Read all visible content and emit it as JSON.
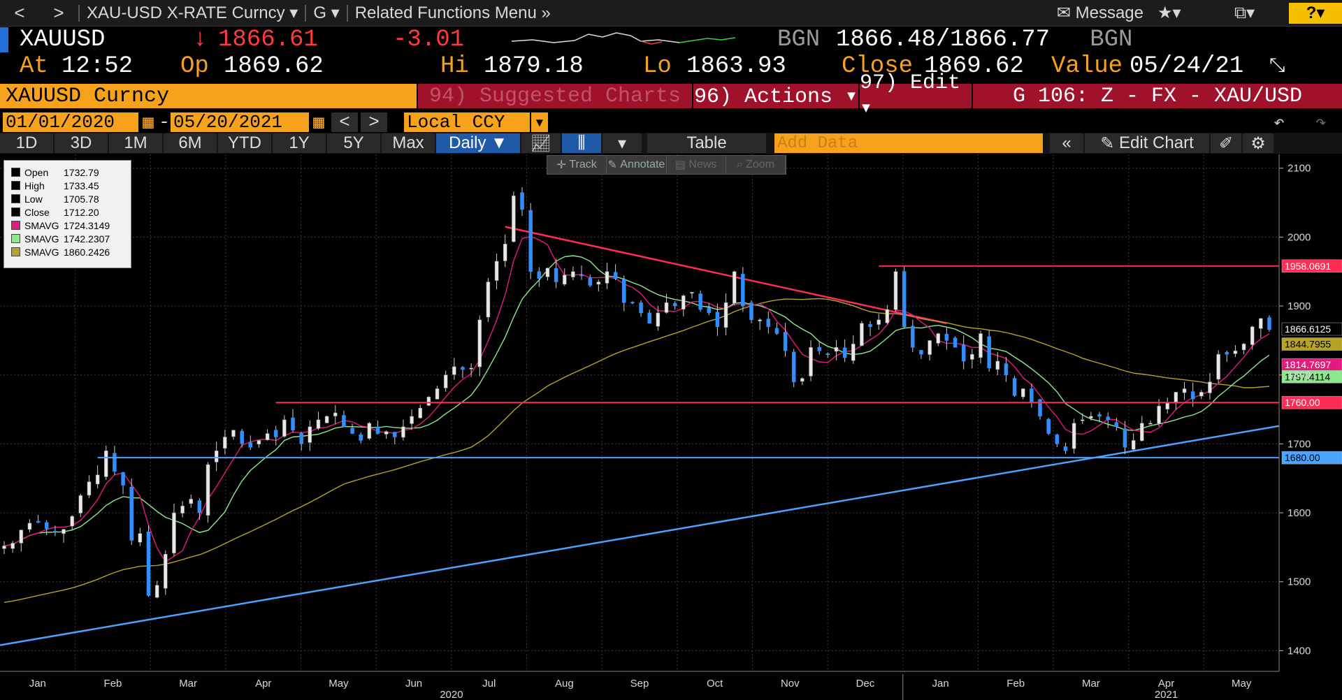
{
  "nav": {
    "back": "<",
    "forward": ">",
    "security_menu": "XAU-USD X-RATE Curncy",
    "function_menu": "G",
    "related": "Related Functions Menu",
    "message": "Message",
    "help": "?"
  },
  "ticker": {
    "symbol": "XAUUSD",
    "last_arrow": "↓",
    "last": "1866.61",
    "change": "-3.01",
    "source1": "BGN",
    "bid": "1866.48",
    "slash": "/",
    "ask": "1866.77",
    "source2": "BGN",
    "at_label": "At",
    "at": "12:52",
    "op_label": "Op",
    "op": "1869.62",
    "hi_label": "Hi",
    "hi": "1879.18",
    "lo_label": "Lo",
    "lo": "1863.93",
    "close_label": "Close",
    "close": "1869.62",
    "value_label": "Value",
    "value_date": "05/24/21"
  },
  "function_bar": {
    "title": "XAUUSD Curncy",
    "suggested": "94) Suggested Charts",
    "actions": "96) Actions ▾",
    "edit": "97) Edit ▾",
    "chart_name": "G 106: Z - FX - XAU/USD"
  },
  "date_bar": {
    "start": "01/01/2020",
    "dash": "-",
    "end": "05/20/2021",
    "prev": "<",
    "next": ">",
    "currency": "Local CCY"
  },
  "period_bar": {
    "periods": [
      "1D",
      "3D",
      "1M",
      "6M",
      "YTD",
      "1Y",
      "5Y",
      "Max"
    ],
    "frequency": "Daily ▼",
    "table": "Table",
    "add_data_placeholder": "Add Data",
    "collapse": "«",
    "edit_chart": "Edit Chart"
  },
  "toolbar": {
    "track": "Track",
    "annotate": "Annotate",
    "news": "News",
    "zoom": "Zoom"
  },
  "legend": [
    {
      "name": "Open",
      "value": "1732.79",
      "color": "#000000"
    },
    {
      "name": "High",
      "value": "1733.45",
      "color": "#000000"
    },
    {
      "name": "Low",
      "value": "1705.78",
      "color": "#000000"
    },
    {
      "name": "Close",
      "value": "1712.20",
      "color": "#000000"
    },
    {
      "name": "SMAVG",
      "value": "1724.3149",
      "color": "#e6197f"
    },
    {
      "name": "SMAVG",
      "value": "1742.2307",
      "color": "#8de88d"
    },
    {
      "name": "SMAVG",
      "value": "1860.2426",
      "color": "#b5a227"
    }
  ],
  "chart_data": {
    "type": "candlestick",
    "ylim": [
      1370,
      2120
    ],
    "y_ticks": [
      1400,
      1500,
      1600,
      1700,
      1800,
      1900,
      2000,
      2100
    ],
    "x_month_ticks": [
      "Jan",
      "Feb",
      "Mar",
      "Apr",
      "May",
      "Jun",
      "Jul",
      "Aug",
      "Sep",
      "Oct",
      "Nov",
      "Dec",
      "Jan",
      "Feb",
      "Mar",
      "Apr",
      "May"
    ],
    "x_years": [
      "2020",
      "2021"
    ],
    "price_weekly_close": [
      1552,
      1556,
      1575,
      1585,
      1586,
      1577,
      1573,
      1576,
      1595,
      1625,
      1645,
      1655,
      1690,
      1660,
      1640,
      1560,
      1570,
      1480,
      1495,
      1540,
      1600,
      1610,
      1620,
      1600,
      1670,
      1690,
      1710,
      1720,
      1700,
      1695,
      1705,
      1715,
      1710,
      1735,
      1720,
      1700,
      1725,
      1735,
      1740,
      1745,
      1725,
      1715,
      1705,
      1730,
      1715,
      1718,
      1710,
      1725,
      1740,
      1752,
      1768,
      1780,
      1800,
      1812,
      1808,
      1810,
      1880,
      1935,
      1965,
      1990,
      2060,
      2040,
      1950,
      1940,
      1955,
      1935,
      1945,
      1950,
      1945,
      1930,
      1935,
      1950,
      1940,
      1905,
      1905,
      1890,
      1875,
      1890,
      1905,
      1900,
      1915,
      1920,
      1895,
      1890,
      1870,
      1905,
      1950,
      1900,
      1880,
      1880,
      1870,
      1860,
      1835,
      1790,
      1795,
      1840,
      1835,
      1830,
      1840,
      1825,
      1845,
      1875,
      1870,
      1880,
      1895,
      1950,
      1870,
      1840,
      1830,
      1850,
      1860,
      1850,
      1840,
      1820,
      1830,
      1860,
      1810,
      1820,
      1800,
      1770,
      1780,
      1760,
      1740,
      1715,
      1700,
      1690,
      1730,
      1735,
      1740,
      1740,
      1735,
      1725,
      1695,
      1705,
      1730,
      1730,
      1755,
      1760,
      1775,
      1780,
      1765,
      1775,
      1790,
      1830,
      1830,
      1835,
      1845,
      1870,
      1882,
      1866
    ],
    "series": [
      {
        "name": "Price",
        "color": "#2f8fff"
      },
      {
        "name": "SMAVG",
        "color": "#e6197f",
        "last": 1814.7697
      },
      {
        "name": "SMAVG",
        "color": "#8de88d",
        "last": 1797.4114
      },
      {
        "name": "SMAVG",
        "color": "#b5a227",
        "last": 1844.7955
      }
    ],
    "last_price": 1866.6125,
    "horizontal_lines": [
      {
        "value": 1958.0691,
        "color": "#ff2d55"
      },
      {
        "value": 1760.0,
        "color": "#ff2d55"
      },
      {
        "value": 1680.0,
        "color": "#4aa3ff"
      }
    ],
    "price_labels": [
      {
        "text": "1958.0691",
        "value": 1958.0691,
        "bg": "#ff2d55",
        "fg": "#ffffff"
      },
      {
        "text": "1866.6125",
        "value": 1866.6125,
        "bg": "#000000",
        "fg": "#ffffff"
      },
      {
        "text": "1844.7955",
        "value": 1844.7955,
        "bg": "#b5a227",
        "fg": "#000000"
      },
      {
        "text": "1814.7697",
        "value": 1814.7697,
        "bg": "#e6197f",
        "fg": "#ffffff"
      },
      {
        "text": "1797.4114",
        "value": 1797.4114,
        "bg": "#8de88d",
        "fg": "#000000"
      },
      {
        "text": "1760.00",
        "value": 1760.0,
        "bg": "#ff2d55",
        "fg": "#ffffff"
      },
      {
        "text": "1680.00",
        "value": 1680.0,
        "bg": "#4aa3ff",
        "fg": "#000000"
      }
    ]
  }
}
